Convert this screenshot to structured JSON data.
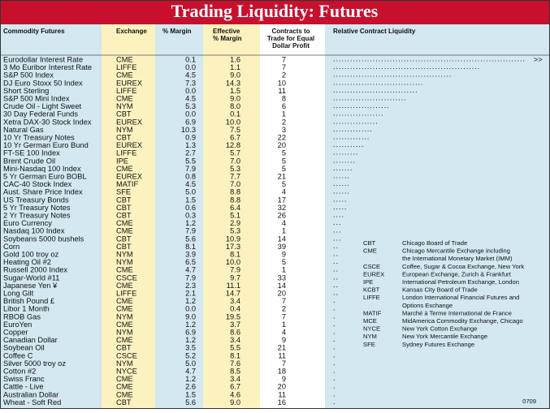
{
  "title": "Trading Liquidity: Futures",
  "header": [
    "Commodity Futures",
    "Exchange",
    "% Margin",
    [
      "Effective",
      "% Margin"
    ],
    [
      "Contracts to",
      "Trade for Equal",
      "Dollar Profit"
    ],
    "Relative Contract Liquidity"
  ],
  "table": {
    "rows": [
      [
        "Eurodollar Interest Rate",
        "CME",
        "0.1",
        "1.6",
        "7",
        68
      ],
      [
        "3 Mo Euribor Interest Rate",
        "LIFFE",
        "0.0",
        "1.1",
        "7",
        52
      ],
      [
        "S&P 500 Index",
        "CME",
        "4.5",
        "9.0",
        "2",
        42
      ],
      [
        "DJ Euro Stoxx 50 Index",
        "EUREX",
        "7.3",
        "14.3",
        "10",
        32
      ],
      [
        "Short Sterling",
        "LIFFE",
        "0.0",
        "1.5",
        "11",
        30
      ],
      [
        "S&P 500 Mini Index",
        "CME",
        "4.5",
        "9.0",
        "8",
        26
      ],
      [
        "Crude Oil - Light Sweet",
        "NYM",
        "5.3",
        "8.0",
        "6",
        20
      ],
      [
        "30 Day Federal Funds",
        "CBT",
        "0.0",
        "0.1",
        "1",
        18
      ],
      [
        "Xetra DAX-30 Stock Index",
        "EUREX",
        "6.9",
        "10.0",
        "2",
        16
      ],
      [
        "Natural Gas",
        "NYM",
        "10.3",
        "7.5",
        "3",
        14
      ],
      [
        "10 Yr Treasury Notes",
        "CBT",
        "0.9",
        "6.7",
        "22",
        13
      ],
      [
        "10 Yr German Euro Bund",
        "EUREX",
        "1.3",
        "12.8",
        "20",
        11
      ],
      [
        "FT-SE 100 Index",
        "LIFFE",
        "2.7",
        "5.7",
        "5",
        9
      ],
      [
        "Brent Crude Oil",
        "IPE",
        "5.5",
        "7.0",
        "5",
        8
      ],
      [
        "Mini-Nasdaq 100 Index",
        "CME",
        "7.9",
        "5.3",
        "5",
        7
      ],
      [
        "5 Yr German Euro BOBL",
        "EUREX",
        "0.8",
        "7.7",
        "21",
        6
      ],
      [
        "CAC-40 Stock Index",
        "MATIF",
        "4.5",
        "7.0",
        "5",
        6
      ],
      [
        "Aust. Share Price Index",
        "SFE",
        "5.0",
        "8.8",
        "4",
        6
      ],
      [
        "US Treasury Bonds",
        "CBT",
        "1.5",
        "8.8",
        "17",
        5
      ],
      [
        "5 Yr Treasury Notes",
        "CBT",
        "0.6",
        "6.4",
        "32",
        5
      ],
      [
        "2 Yr Treasury Notes",
        "CBT",
        "0.3",
        "5.1",
        "26",
        4
      ],
      [
        "Euro Currency",
        "CME",
        "1.2",
        "2.9",
        "4",
        3
      ],
      [
        "Nasdaq 100 Index",
        "CME",
        "7.9",
        "5.3",
        "1",
        3
      ],
      [
        "Soybeans 5000 bushels",
        "CBT",
        "5.6",
        "10.9",
        "14",
        3
      ],
      [
        "Corn",
        "CBT",
        "8.1",
        "17.3",
        "39",
        2
      ],
      [
        "Gold 100 troy oz",
        "NYM",
        "3.9",
        "8.1",
        "9",
        2
      ],
      [
        "Heating Oil #2",
        "NYM",
        "6.5",
        "10.0",
        "5",
        2
      ],
      [
        "Russell 2000 Index",
        "CME",
        "4.7",
        "7.9",
        "1",
        2
      ],
      [
        "Sugar-World #11",
        "CSCE",
        "7.9",
        "9.7",
        "33",
        2
      ],
      [
        "Japanese Yen ¥",
        "CME",
        "2.3",
        "11.1",
        "14",
        2
      ],
      [
        "Long Gilt",
        "LIFFE",
        "2.1",
        "14.7",
        "20",
        2
      ],
      [
        "British Pound £",
        "CME",
        "1.2",
        "3.4",
        "7",
        1
      ],
      [
        "Libor 1 Month",
        "CME",
        "0.0",
        "0.4",
        "2",
        1
      ],
      [
        "RBOB Gas",
        "NYM",
        "9.0",
        "19.5",
        "7",
        1
      ],
      [
        "EuroYen",
        "CME",
        "1.2",
        "3.7",
        "1",
        1
      ],
      [
        "Copper",
        "NYM",
        "6.9",
        "8.6",
        "4",
        1
      ],
      [
        "Canadian Dollar",
        "CME",
        "1.2",
        "3.4",
        "9",
        1
      ],
      [
        "Soybean Oil",
        "CBT",
        "3.5",
        "5.5",
        "21",
        1
      ],
      [
        "Coffee C",
        "CSCE",
        "5.2",
        "8.1",
        "11",
        1
      ],
      [
        "Silver 5000 troy oz",
        "NYM",
        "5.0",
        "7.6",
        "7",
        1
      ],
      [
        "Cotton #2",
        "NYCE",
        "4.7",
        "8.5",
        "18",
        1
      ],
      [
        "Swiss Franc",
        "CME",
        "1.2",
        "3.4",
        "9",
        1
      ],
      [
        "Cattle - Live",
        "CME",
        "2.6",
        "6.7",
        "20",
        1
      ],
      [
        "Australian Dollar",
        "CME",
        "1.5",
        "4.6",
        "11",
        1
      ],
      [
        "Wheat - Soft Red",
        "CBT",
        "5.6",
        "9.0",
        "16",
        1
      ]
    ],
    "overflow_mark": ">>"
  },
  "legend": [
    {
      "abbr": "CBT",
      "desc": [
        "Chicago Board of Trade"
      ]
    },
    {
      "abbr": "CME",
      "desc": [
        "Chicago Mercantile Exchange including",
        "the International Monetary Market (IMM)"
      ]
    },
    {
      "abbr": "CSCE",
      "desc": [
        "Coffee, Sugar & Cocoa Exchange, New York"
      ]
    },
    {
      "abbr": "EUREX",
      "desc": [
        "European Exchange, Zurich & Frankfurt"
      ]
    },
    {
      "abbr": "IPE",
      "desc": [
        "International Petroleum Exchange, London"
      ]
    },
    {
      "abbr": "KCBT",
      "desc": [
        "Kansas City Board of Trade"
      ]
    },
    {
      "abbr": "LIFFE",
      "desc": [
        "London International Financial Futures and",
        "Options Exchange"
      ]
    },
    {
      "abbr": "MATIF",
      "desc": [
        "Marché à Terme International de France"
      ]
    },
    {
      "abbr": "MCE",
      "desc": [
        "MidAmerica Commodity Exchange, Chicago"
      ]
    },
    {
      "abbr": "NYCE",
      "desc": [
        "New York Cotton Exchange"
      ]
    },
    {
      "abbr": "NYM",
      "desc": [
        "New York Mercantile Exchange"
      ]
    },
    {
      "abbr": "SFE",
      "desc": [
        "Sydney Futures Exchange"
      ]
    }
  ],
  "footer": "0709"
}
